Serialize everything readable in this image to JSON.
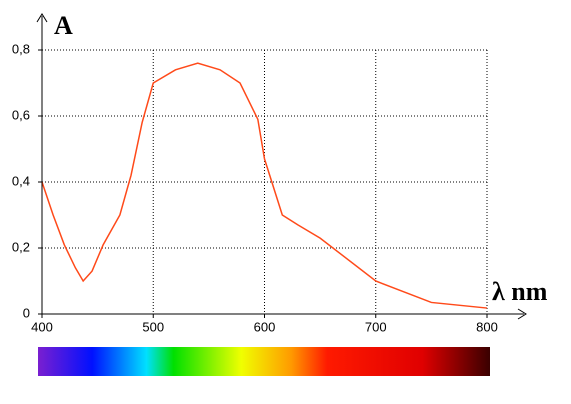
{
  "chart_data": {
    "type": "line",
    "y_label": "A",
    "x_label": "λ nm",
    "x": [
      400,
      410,
      420,
      430,
      437,
      445,
      455,
      470,
      480,
      490,
      500,
      520,
      540,
      560,
      578,
      594,
      600,
      616,
      630,
      650,
      700,
      750,
      800
    ],
    "values": [
      0.4,
      0.3,
      0.21,
      0.14,
      0.1,
      0.13,
      0.21,
      0.3,
      0.42,
      0.58,
      0.7,
      0.74,
      0.76,
      0.74,
      0.7,
      0.59,
      0.47,
      0.3,
      0.27,
      0.23,
      0.1,
      0.035,
      0.018
    ],
    "color": "#ff4a1a",
    "xlim": [
      400,
      800
    ],
    "xticks": [
      400,
      500,
      600,
      700,
      800
    ],
    "ylim": [
      0,
      0.8
    ],
    "yticks": [
      0,
      {
        "value": 0.2,
        "label": "0,2"
      },
      {
        "value": 0.4,
        "label": "0,4"
      },
      {
        "value": 0.6,
        "label": "0,6"
      },
      {
        "value": 0.8,
        "label": "0,8"
      }
    ],
    "grid": true
  }
}
